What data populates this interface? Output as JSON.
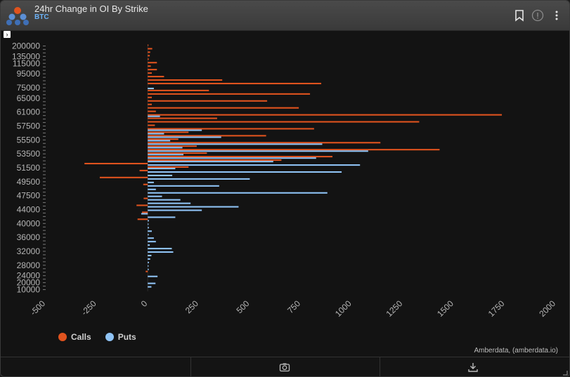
{
  "header": {
    "title": "24hr Change in OI By Strike",
    "subtitle": "BTC"
  },
  "credit": "Amberdata, (amberdata.io)",
  "colors": {
    "calls": "#e0531e",
    "puts": "#8fc3f5",
    "background": "#131313"
  },
  "legend": [
    {
      "label": "Calls",
      "color": "#e0531e"
    },
    {
      "label": "Puts",
      "color": "#8fc3f5"
    }
  ],
  "chart_data": {
    "type": "bar",
    "orientation": "horizontal",
    "title": "",
    "xlabel": "",
    "ylabel": "",
    "xlim": [
      -500,
      2000
    ],
    "x_ticks": [
      -500,
      -250,
      0,
      250,
      500,
      750,
      1000,
      1250,
      1500,
      1750,
      2000
    ],
    "y_ticks": [
      "10000",
      "20000",
      "24000",
      "28000",
      "32000",
      "36000",
      "40000",
      "44000",
      "47500",
      "49500",
      "51500",
      "53500",
      "55500",
      "57500",
      "61000",
      "65000",
      "75000",
      "95000",
      "115000",
      "135000",
      "200000"
    ],
    "grid": false,
    "legend_position": "bottom-left",
    "rows": [
      {
        "k": "10000",
        "c": 0,
        "p": 0
      },
      {
        "k": "19000",
        "c": 0,
        "p": 18
      },
      {
        "k": "20000",
        "c": 0,
        "p": 38
      },
      {
        "k": "22000",
        "c": 0,
        "p": 0
      },
      {
        "k": "24000",
        "c": 0,
        "p": 48
      },
      {
        "k": "26000",
        "c": -10,
        "p": 0
      },
      {
        "k": "27000",
        "c": 0,
        "p": 5
      },
      {
        "k": "28000",
        "c": 0,
        "p": 4
      },
      {
        "k": "29000",
        "c": 0,
        "p": 6
      },
      {
        "k": "30000",
        "c": 0,
        "p": 12
      },
      {
        "k": "31000",
        "c": 0,
        "p": 18
      },
      {
        "k": "32000",
        "c": 0,
        "p": 125
      },
      {
        "k": "33000",
        "c": 0,
        "p": 118
      },
      {
        "k": "34000",
        "c": 0,
        "p": 10
      },
      {
        "k": "35000",
        "c": 0,
        "p": 40
      },
      {
        "k": "36000",
        "c": 0,
        "p": 30
      },
      {
        "k": "37000",
        "c": 0,
        "p": 5
      },
      {
        "k": "38000",
        "c": 0,
        "p": 20
      },
      {
        "k": "39000",
        "c": 0,
        "p": 6
      },
      {
        "k": "40000",
        "c": 0,
        "p": 4
      },
      {
        "k": "41000",
        "c": -50,
        "p": 6
      },
      {
        "k": "42000",
        "c": 0,
        "p": 135
      },
      {
        "k": "43000",
        "c": -28,
        "p": -32
      },
      {
        "k": "44000",
        "c": 0,
        "p": 265
      },
      {
        "k": "45000",
        "c": -55,
        "p": 445
      },
      {
        "k": "46000",
        "c": 0,
        "p": 210
      },
      {
        "k": "47000",
        "c": -20,
        "p": 160
      },
      {
        "k": "47500",
        "c": 0,
        "p": 70
      },
      {
        "k": "48000",
        "c": 0,
        "p": 880
      },
      {
        "k": "48500",
        "c": 0,
        "p": 40
      },
      {
        "k": "49000",
        "c": -22,
        "p": 350
      },
      {
        "k": "49500",
        "c": 0,
        "p": 30
      },
      {
        "k": "50000",
        "c": -235,
        "p": 500
      },
      {
        "k": "50500",
        "c": 0,
        "p": 120
      },
      {
        "k": "51000",
        "c": -40,
        "p": 950
      },
      {
        "k": "51500",
        "c": 200,
        "p": 135
      },
      {
        "k": "52000",
        "c": -310,
        "p": 1040
      },
      {
        "k": "52500",
        "c": 655,
        "p": 615
      },
      {
        "k": "53000",
        "c": 905,
        "p": 825
      },
      {
        "k": "53500",
        "c": 290,
        "p": 175
      },
      {
        "k": "54000",
        "c": 1430,
        "p": 1080
      },
      {
        "k": "54500",
        "c": 240,
        "p": 170
      },
      {
        "k": "55000",
        "c": 1140,
        "p": 855
      },
      {
        "k": "55500",
        "c": 150,
        "p": 110
      },
      {
        "k": "56000",
        "c": 580,
        "p": 360
      },
      {
        "k": "56500",
        "c": 200,
        "p": 80
      },
      {
        "k": "57000",
        "c": 815,
        "p": 265
      },
      {
        "k": "57500",
        "c": 35,
        "p": 0
      },
      {
        "k": "58000",
        "c": 1330,
        "p": 0
      },
      {
        "k": "59000",
        "c": 340,
        "p": 0
      },
      {
        "k": "60000",
        "c": 1735,
        "p": 60
      },
      {
        "k": "61000",
        "c": 40,
        "p": 0
      },
      {
        "k": "62000",
        "c": 740,
        "p": 0
      },
      {
        "k": "63000",
        "c": 20,
        "p": 0
      },
      {
        "k": "64000",
        "c": 585,
        "p": 0
      },
      {
        "k": "65000",
        "c": 20,
        "p": 0
      },
      {
        "k": "66000",
        "c": 795,
        "p": 0
      },
      {
        "k": "70000",
        "c": 300,
        "p": 0
      },
      {
        "k": "75000",
        "c": 0,
        "p": 30
      },
      {
        "k": "80000",
        "c": 850,
        "p": 0
      },
      {
        "k": "85000",
        "c": 365,
        "p": 0
      },
      {
        "k": "90000",
        "c": 80,
        "p": 0
      },
      {
        "k": "95000",
        "c": 20,
        "p": 0
      },
      {
        "k": "100000",
        "c": 45,
        "p": 0
      },
      {
        "k": "110000",
        "c": 15,
        "p": 0
      },
      {
        "k": "115000",
        "c": 45,
        "p": 0
      },
      {
        "k": "120000",
        "c": 5,
        "p": 0
      },
      {
        "k": "135000",
        "c": 10,
        "p": 0
      },
      {
        "k": "150000",
        "c": 12,
        "p": 0
      },
      {
        "k": "175000",
        "c": 22,
        "p": 0
      },
      {
        "k": "200000",
        "c": 3,
        "p": 0
      }
    ]
  }
}
